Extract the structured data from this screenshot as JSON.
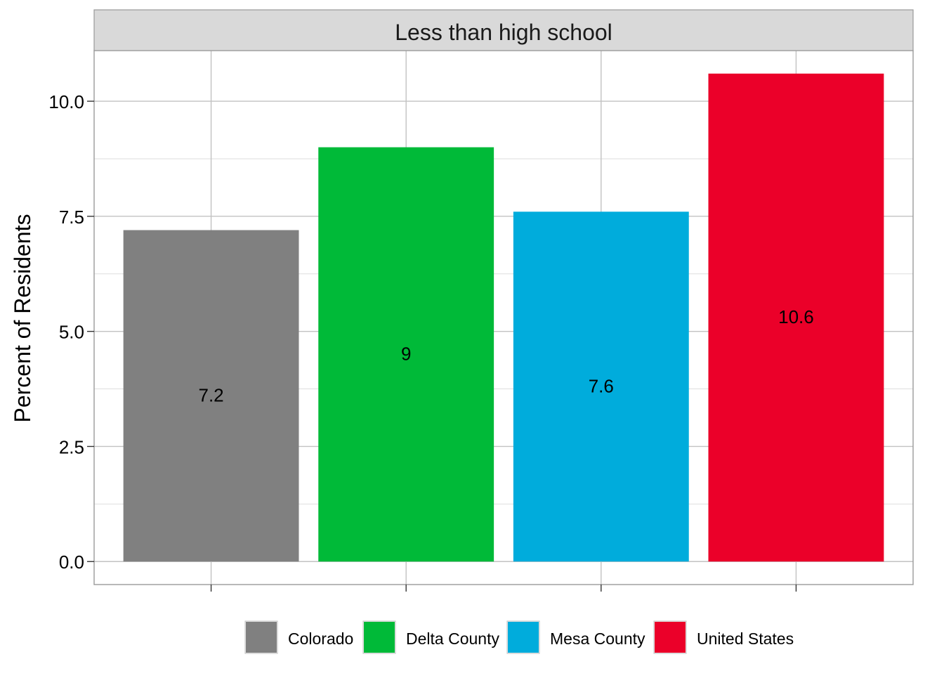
{
  "chart_data": {
    "type": "bar",
    "facet_title": "Less than high school",
    "ylabel": "Percent of Residents",
    "xlabel": "",
    "categories": [
      "Colorado",
      "Delta County",
      "Mesa County",
      "United States"
    ],
    "values": [
      7.2,
      9,
      7.6,
      10.6
    ],
    "data_labels": [
      "7.2",
      "9",
      "7.6",
      "10.6"
    ],
    "colors": [
      "#808080",
      "#00BA38",
      "#00ACDC",
      "#EB0029"
    ],
    "ylim": [
      -0.5,
      11.1
    ],
    "y_ticks": [
      0.0,
      2.5,
      5.0,
      7.5,
      10.0
    ],
    "y_tick_labels": [
      "0.0",
      "2.5",
      "5.0",
      "7.5",
      "10.0"
    ],
    "x_tick_labels_visible": false,
    "grid": true,
    "legend": {
      "position": "bottom",
      "entries": [
        "Colorado",
        "Delta County",
        "Mesa County",
        "United States"
      ]
    }
  }
}
